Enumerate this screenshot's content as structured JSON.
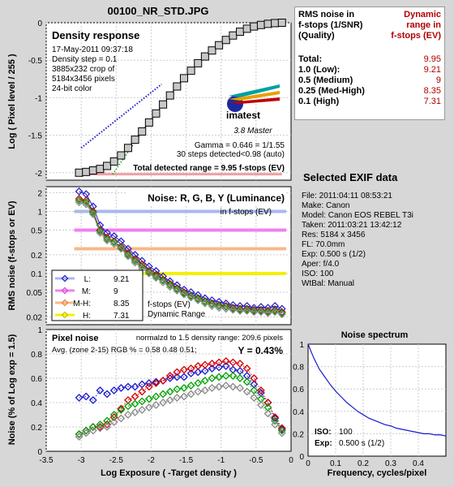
{
  "file_title": "00100_NR_STD.JPG",
  "colors": {
    "blue": "#1a1acc",
    "red": "#d40000",
    "green": "#00a000",
    "gray": "#888888",
    "bar_blue": "#a8b8f0",
    "bar_magenta": "#f080f0",
    "bar_orange": "#f8b888",
    "bar_yellow": "#f4f000",
    "pink": "#f0a0a0"
  },
  "density_panel": {
    "title": "Density response",
    "date": "17-May-2011 09:37:18",
    "step": "Density step = 0.1",
    "crop1": "3885x232 crop of",
    "crop2": "5184x3456 pixels",
    "depth": "24-bit color",
    "gamma": "Gamma = 0.646 = 1/1.55",
    "steps": "30 steps detected<0.98 (auto)",
    "total_range": "Total detected range = 9.95 f-stops (EV)",
    "logo": "imatest",
    "logo_sub": "3.8  Master",
    "ylabel": "Log ( Pixel level / 255 )",
    "yticks": [
      "0",
      "-0.5",
      "-1",
      "-1.5",
      "-2"
    ]
  },
  "noise_panel": {
    "title": "Noise: R, G, B, Y (Luminance)",
    "subtitle": "in f-stops (EV)",
    "ylabel": "RMS noise (f-stops or EV)",
    "yticks": [
      "2",
      "1",
      "0.5",
      "0.2",
      "0.1",
      "0.05",
      "0.02"
    ],
    "dr_label": "f-stops (EV)",
    "dr_label2": "Dynamic Range",
    "legend": [
      {
        "key": "L:",
        "value": "9.21"
      },
      {
        "key": "M:",
        "value": "9"
      },
      {
        "key": "M-H:",
        "value": "8.35"
      },
      {
        "key": "H:",
        "value": "7.31"
      }
    ]
  },
  "pixel_panel": {
    "title": "Pixel noise",
    "normalized": "normalzd to 1.5 density range: 209.6 pixels",
    "avg": "Avg. (zone 2-15) RGB % = 0.58  0.48  0.51;",
    "y_value": "Y = 0.43%",
    "ylabel": "Noise (% of Log exp = 1.5)",
    "xlabel": "Log Exposure ( -Target density )",
    "yticks": [
      "1",
      "0.8",
      "0.6",
      "0.4",
      "0.2",
      "0"
    ],
    "xticks": [
      "-3.5",
      "-3",
      "-2.5",
      "-2",
      "-1.5",
      "-1",
      "-0.5",
      "0"
    ]
  },
  "spectrum_panel": {
    "title": "Noise spectrum",
    "xlabel": "Frequency, cycles/pixel",
    "iso_label": "ISO:",
    "iso_value": "100",
    "exp_label": "Exp:",
    "exp_value": "0.500 s   (1/2)",
    "yticks": [
      "1",
      "0.8",
      "0.6",
      "0.4",
      "0.2",
      "0"
    ],
    "xticks": [
      "0",
      "0.1",
      "0.2",
      "0.3",
      "0.4"
    ]
  },
  "rms_table": {
    "head_left1": "RMS noise in",
    "head_left2": "f-stops (1/SNR)",
    "head_left3": "(Quality)",
    "head_right1": "Dynamic",
    "head_right2": "range in",
    "head_right3": "f-stops (EV)",
    "rows": [
      {
        "label": "Total:",
        "value": "9.95"
      },
      {
        "label": "1.0  (Low):",
        "value": "9.21"
      },
      {
        "label": "0.5  (Medium)",
        "value": "9"
      },
      {
        "label": "0.25 (Med-High)",
        "value": "8.35"
      },
      {
        "label": "0.1  (High)",
        "value": "7.31"
      }
    ]
  },
  "exif": {
    "title": "Selected EXIF data",
    "lines": [
      "File:  2011:04:11 08:53:21",
      "Make:  Canon",
      "Model: Canon EOS REBEL T3i",
      "Taken:  2011:03:21 13:42:12",
      "Res:    5184 x 3456",
      "FL:  70.0mm",
      "Exp:   0.500 s  (1/2)",
      "Aper:  f/4.0",
      "ISO:   100",
      "WtBal: Manual"
    ]
  },
  "chart_data": [
    {
      "type": "line",
      "title": "Density response",
      "xlabel": "Log Exposure ( -Target density )",
      "ylabel": "Log ( Pixel level / 255 )",
      "xlim": [
        -3.5,
        0
      ],
      "ylim": [
        -2.1,
        0
      ],
      "series": [
        {
          "values_x": [
            -3.03,
            -2.93,
            -2.83,
            -2.73,
            -2.63,
            -2.53,
            -2.43,
            -2.33,
            -2.23,
            -2.13,
            -2.03,
            -1.93,
            -1.83,
            -1.73,
            -1.63,
            -1.53,
            -1.43,
            -1.33,
            -1.23,
            -1.13,
            -1.03,
            -0.93,
            -0.83,
            -0.73,
            -0.63,
            -0.53,
            -0.43,
            -0.33,
            -0.23,
            -0.13
          ],
          "values_y": [
            -2.0,
            -1.99,
            -1.97,
            -1.95,
            -1.91,
            -1.85,
            -1.77,
            -1.67,
            -1.56,
            -1.45,
            -1.33,
            -1.21,
            -1.09,
            -0.97,
            -0.85,
            -0.74,
            -0.64,
            -0.54,
            -0.45,
            -0.37,
            -0.3,
            -0.23,
            -0.17,
            -0.12,
            -0.08,
            -0.05,
            -0.03,
            -0.015,
            -0.005,
            0.0
          ]
        }
      ]
    },
    {
      "type": "line",
      "title": "Noise: R, G, B, Y (Luminance)",
      "ylabel": "RMS noise (f-stops or EV)",
      "yscale": "log",
      "xlim": [
        -3.5,
        0
      ],
      "ylim": [
        0.015,
        2.5
      ],
      "thresholds": [
        1.0,
        0.5,
        0.25,
        0.1
      ],
      "x": [
        -3.03,
        -2.93,
        -2.83,
        -2.73,
        -2.63,
        -2.53,
        -2.43,
        -2.33,
        -2.23,
        -2.13,
        -2.03,
        -1.93,
        -1.83,
        -1.73,
        -1.63,
        -1.53,
        -1.43,
        -1.33,
        -1.23,
        -1.13,
        -1.03,
        -0.93,
        -0.83,
        -0.73,
        -0.63,
        -0.53,
        -0.43,
        -0.33,
        -0.23,
        -0.13
      ],
      "series": [
        {
          "values": [
            2.1,
            1.9,
            1.2,
            0.6,
            0.45,
            0.4,
            0.33,
            0.25,
            0.2,
            0.16,
            0.13,
            0.11,
            0.09,
            0.075,
            0.065,
            0.055,
            0.05,
            0.045,
            0.04,
            0.037,
            0.035,
            0.033,
            0.031,
            0.03,
            0.03,
            0.028,
            0.029,
            0.028,
            0.03,
            0.027
          ]
        },
        {
          "values": [
            1.6,
            1.5,
            1.0,
            0.5,
            0.38,
            0.33,
            0.27,
            0.21,
            0.17,
            0.14,
            0.11,
            0.095,
            0.08,
            0.068,
            0.058,
            0.05,
            0.044,
            0.04,
            0.036,
            0.033,
            0.031,
            0.03,
            0.028,
            0.027,
            0.027,
            0.026,
            0.026,
            0.025,
            0.026,
            0.024
          ]
        },
        {
          "values": [
            1.5,
            1.4,
            0.95,
            0.48,
            0.36,
            0.32,
            0.26,
            0.2,
            0.16,
            0.13,
            0.105,
            0.09,
            0.077,
            0.065,
            0.056,
            0.048,
            0.043,
            0.039,
            0.035,
            0.032,
            0.03,
            0.029,
            0.027,
            0.026,
            0.026,
            0.025,
            0.025,
            0.024,
            0.025,
            0.023
          ]
        },
        {
          "values": [
            1.4,
            1.3,
            0.9,
            0.45,
            0.34,
            0.3,
            0.25,
            0.19,
            0.15,
            0.12,
            0.1,
            0.085,
            0.072,
            0.061,
            0.053,
            0.046,
            0.041,
            0.037,
            0.033,
            0.03,
            0.028,
            0.027,
            0.026,
            0.025,
            0.025,
            0.024,
            0.024,
            0.023,
            0.024,
            0.022
          ]
        }
      ]
    },
    {
      "type": "line",
      "title": "Pixel noise",
      "ylim": [
        0,
        1
      ],
      "xlim": [
        -3.5,
        0
      ],
      "x": [
        -3.03,
        -2.93,
        -2.83,
        -2.73,
        -2.63,
        -2.53,
        -2.43,
        -2.33,
        -2.23,
        -2.13,
        -2.03,
        -1.93,
        -1.83,
        -1.73,
        -1.63,
        -1.53,
        -1.43,
        -1.33,
        -1.23,
        -1.13,
        -1.03,
        -0.93,
        -0.83,
        -0.73,
        -0.63,
        -0.53,
        -0.43,
        -0.33,
        -0.23,
        -0.13
      ],
      "series": [
        {
          "values": [
            0.44,
            0.45,
            0.42,
            0.5,
            0.47,
            0.5,
            0.52,
            0.53,
            0.53,
            0.55,
            0.56,
            0.57,
            0.58,
            0.6,
            0.61,
            0.61,
            0.64,
            0.65,
            0.66,
            0.68,
            0.69,
            0.7,
            0.67,
            0.66,
            0.62,
            0.55,
            0.48,
            0.4,
            0.27,
            0.18
          ]
        },
        {
          "values": [
            0.14,
            0.17,
            0.2,
            0.2,
            0.22,
            0.28,
            0.35,
            0.42,
            0.45,
            0.49,
            0.53,
            0.56,
            0.58,
            0.62,
            0.65,
            0.67,
            0.68,
            0.7,
            0.71,
            0.72,
            0.73,
            0.74,
            0.73,
            0.72,
            0.68,
            0.6,
            0.5,
            0.4,
            0.28,
            0.19
          ]
        },
        {
          "values": [
            0.14,
            0.17,
            0.2,
            0.22,
            0.25,
            0.3,
            0.34,
            0.37,
            0.39,
            0.41,
            0.43,
            0.45,
            0.47,
            0.49,
            0.51,
            0.52,
            0.54,
            0.56,
            0.58,
            0.6,
            0.61,
            0.62,
            0.62,
            0.6,
            0.57,
            0.5,
            0.43,
            0.36,
            0.25,
            0.17
          ]
        },
        {
          "values": [
            0.12,
            0.15,
            0.17,
            0.19,
            0.2,
            0.24,
            0.27,
            0.3,
            0.32,
            0.34,
            0.36,
            0.38,
            0.4,
            0.42,
            0.44,
            0.45,
            0.47,
            0.49,
            0.5,
            0.52,
            0.53,
            0.54,
            0.53,
            0.52,
            0.49,
            0.44,
            0.38,
            0.31,
            0.22,
            0.15
          ]
        }
      ]
    },
    {
      "type": "line",
      "title": "Noise spectrum",
      "xlabel": "Frequency, cycles/pixel",
      "xlim": [
        0,
        0.5
      ],
      "ylim": [
        0,
        1
      ],
      "x": [
        0,
        0.02,
        0.04,
        0.06,
        0.08,
        0.1,
        0.12,
        0.14,
        0.16,
        0.18,
        0.2,
        0.22,
        0.24,
        0.26,
        0.28,
        0.3,
        0.32,
        0.34,
        0.36,
        0.38,
        0.4,
        0.42,
        0.44,
        0.46,
        0.48,
        0.5
      ],
      "series": [
        {
          "values": [
            1.0,
            0.88,
            0.78,
            0.71,
            0.64,
            0.58,
            0.53,
            0.48,
            0.44,
            0.4,
            0.37,
            0.34,
            0.32,
            0.3,
            0.28,
            0.27,
            0.25,
            0.24,
            0.23,
            0.22,
            0.21,
            0.2,
            0.2,
            0.19,
            0.19,
            0.18
          ]
        }
      ]
    }
  ]
}
